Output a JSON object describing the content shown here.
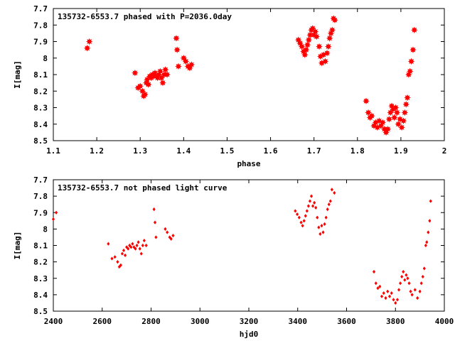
{
  "colors": {
    "points": "#ff0000",
    "axes": "#000000",
    "background": "#ffffff"
  },
  "chart_data": [
    {
      "type": "scatter",
      "title": "135732-6553.7 phased with P=2036.0day",
      "xlabel": "phase",
      "ylabel": "I[mag]",
      "xlim": [
        1.1,
        2.0
      ],
      "ylim": [
        7.7,
        8.5
      ],
      "y_inverted": true,
      "xticks": [
        "1.1",
        "1.2",
        "1.3",
        "1.4",
        "1.5",
        "1.6",
        "1.7",
        "1.8",
        "1.9",
        "2"
      ],
      "yticks": [
        "7.7",
        "7.8",
        "7.9",
        "8",
        "8.1",
        "8.2",
        "8.3",
        "8.4",
        "8.5"
      ],
      "xtick_values": [
        1.1,
        1.2,
        1.3,
        1.4,
        1.5,
        1.6,
        1.7,
        1.8,
        1.9,
        2.0
      ],
      "ytick_values": [
        7.7,
        7.8,
        7.9,
        8.0,
        8.1,
        8.2,
        8.3,
        8.4,
        8.5
      ],
      "marker": "star",
      "points": [
        [
          1.178,
          7.94
        ],
        [
          1.183,
          7.9
        ],
        [
          1.288,
          8.09
        ],
        [
          1.295,
          8.18
        ],
        [
          1.3,
          8.17
        ],
        [
          1.305,
          8.2
        ],
        [
          1.308,
          8.23
        ],
        [
          1.311,
          8.22
        ],
        [
          1.314,
          8.15
        ],
        [
          1.316,
          8.13
        ],
        [
          1.319,
          8.16
        ],
        [
          1.322,
          8.11
        ],
        [
          1.325,
          8.12
        ],
        [
          1.328,
          8.1
        ],
        [
          1.331,
          8.11
        ],
        [
          1.334,
          8.09
        ],
        [
          1.337,
          8.11
        ],
        [
          1.34,
          8.12
        ],
        [
          1.343,
          8.1
        ],
        [
          1.346,
          8.08
        ],
        [
          1.349,
          8.12
        ],
        [
          1.352,
          8.15
        ],
        [
          1.355,
          8.1
        ],
        [
          1.358,
          8.07
        ],
        [
          1.362,
          8.1
        ],
        [
          1.383,
          7.88
        ],
        [
          1.385,
          7.95
        ],
        [
          1.388,
          8.05
        ],
        [
          1.4,
          8.0
        ],
        [
          1.405,
          8.02
        ],
        [
          1.41,
          8.05
        ],
        [
          1.414,
          8.06
        ],
        [
          1.418,
          8.04
        ],
        [
          1.664,
          7.89
        ],
        [
          1.668,
          7.91
        ],
        [
          1.672,
          7.93
        ],
        [
          1.676,
          7.96
        ],
        [
          1.679,
          7.98
        ],
        [
          1.682,
          7.95
        ],
        [
          1.685,
          7.92
        ],
        [
          1.688,
          7.89
        ],
        [
          1.691,
          7.86
        ],
        [
          1.694,
          7.83
        ],
        [
          1.697,
          7.82
        ],
        [
          1.7,
          7.86
        ],
        [
          1.703,
          7.84
        ],
        [
          1.706,
          7.87
        ],
        [
          1.712,
          7.93
        ],
        [
          1.715,
          7.99
        ],
        [
          1.718,
          8.03
        ],
        [
          1.722,
          7.98
        ],
        [
          1.726,
          8.02
        ],
        [
          1.73,
          7.97
        ],
        [
          1.733,
          7.93
        ],
        [
          1.736,
          7.88
        ],
        [
          1.739,
          7.85
        ],
        [
          1.742,
          7.83
        ],
        [
          1.745,
          7.76
        ],
        [
          1.748,
          7.77
        ],
        [
          1.82,
          8.26
        ],
        [
          1.825,
          8.33
        ],
        [
          1.829,
          8.36
        ],
        [
          1.833,
          8.35
        ],
        [
          1.838,
          8.41
        ],
        [
          1.842,
          8.39
        ],
        [
          1.846,
          8.42
        ],
        [
          1.85,
          8.38
        ],
        [
          1.854,
          8.41
        ],
        [
          1.858,
          8.39
        ],
        [
          1.862,
          8.43
        ],
        [
          1.866,
          8.45
        ],
        [
          1.87,
          8.43
        ],
        [
          1.873,
          8.37
        ],
        [
          1.876,
          8.33
        ],
        [
          1.879,
          8.29
        ],
        [
          1.882,
          8.31
        ],
        [
          1.885,
          8.36
        ],
        [
          1.888,
          8.3
        ],
        [
          1.891,
          8.33
        ],
        [
          1.894,
          8.4
        ],
        [
          1.898,
          8.37
        ],
        [
          1.902,
          8.42
        ],
        [
          1.906,
          8.38
        ],
        [
          1.909,
          8.33
        ],
        [
          1.912,
          8.28
        ],
        [
          1.915,
          8.24
        ],
        [
          1.918,
          8.1
        ],
        [
          1.921,
          8.08
        ],
        [
          1.924,
          8.02
        ],
        [
          1.928,
          7.95
        ],
        [
          1.931,
          7.83
        ]
      ]
    },
    {
      "type": "scatter",
      "title": "135732-6553.7 not phased light curve",
      "xlabel": "hjd0",
      "ylabel": "I[mag]",
      "xlim": [
        2400,
        4000
      ],
      "ylim": [
        7.7,
        8.5
      ],
      "y_inverted": true,
      "xticks": [
        "2400",
        "2600",
        "2800",
        "3000",
        "3200",
        "3400",
        "3600",
        "3800",
        "4000"
      ],
      "yticks": [
        "7.7",
        "7.8",
        "7.9",
        "8",
        "8.1",
        "8.2",
        "8.3",
        "8.4",
        "8.5"
      ],
      "xtick_values": [
        2400,
        2600,
        2800,
        3000,
        3200,
        3400,
        3600,
        3800,
        4000
      ],
      "ytick_values": [
        7.7,
        7.8,
        7.9,
        8.0,
        8.1,
        8.2,
        8.3,
        8.4,
        8.5
      ],
      "marker": "diamond",
      "points": [
        [
          2400,
          7.94
        ],
        [
          2412,
          7.9
        ],
        [
          2625,
          8.09
        ],
        [
          2640,
          8.18
        ],
        [
          2652,
          8.17
        ],
        [
          2663,
          8.2
        ],
        [
          2670,
          8.23
        ],
        [
          2676,
          8.22
        ],
        [
          2682,
          8.15
        ],
        [
          2688,
          8.13
        ],
        [
          2694,
          8.16
        ],
        [
          2700,
          8.11
        ],
        [
          2706,
          8.12
        ],
        [
          2712,
          8.1
        ],
        [
          2718,
          8.11
        ],
        [
          2724,
          8.09
        ],
        [
          2730,
          8.11
        ],
        [
          2736,
          8.12
        ],
        [
          2742,
          8.1
        ],
        [
          2748,
          8.08
        ],
        [
          2754,
          8.12
        ],
        [
          2760,
          8.15
        ],
        [
          2766,
          8.1
        ],
        [
          2772,
          8.07
        ],
        [
          2780,
          8.1
        ],
        [
          2812,
          7.88
        ],
        [
          2816,
          7.96
        ],
        [
          2820,
          8.05
        ],
        [
          2858,
          8.0
        ],
        [
          2866,
          8.02
        ],
        [
          2876,
          8.05
        ],
        [
          2882,
          8.06
        ],
        [
          2890,
          8.04
        ],
        [
          3390,
          7.89
        ],
        [
          3398,
          7.91
        ],
        [
          3406,
          7.93
        ],
        [
          3414,
          7.96
        ],
        [
          3420,
          7.98
        ],
        [
          3426,
          7.95
        ],
        [
          3432,
          7.92
        ],
        [
          3438,
          7.89
        ],
        [
          3444,
          7.86
        ],
        [
          3450,
          7.83
        ],
        [
          3456,
          7.8
        ],
        [
          3462,
          7.86
        ],
        [
          3468,
          7.84
        ],
        [
          3474,
          7.87
        ],
        [
          3480,
          7.93
        ],
        [
          3486,
          7.99
        ],
        [
          3492,
          8.03
        ],
        [
          3498,
          7.98
        ],
        [
          3504,
          8.02
        ],
        [
          3510,
          7.97
        ],
        [
          3516,
          7.93
        ],
        [
          3522,
          7.88
        ],
        [
          3528,
          7.85
        ],
        [
          3534,
          7.83
        ],
        [
          3540,
          7.76
        ],
        [
          3550,
          7.78
        ],
        [
          3712,
          8.26
        ],
        [
          3720,
          8.33
        ],
        [
          3728,
          8.36
        ],
        [
          3736,
          8.35
        ],
        [
          3744,
          8.41
        ],
        [
          3752,
          8.39
        ],
        [
          3760,
          8.42
        ],
        [
          3768,
          8.38
        ],
        [
          3776,
          8.41
        ],
        [
          3784,
          8.39
        ],
        [
          3792,
          8.43
        ],
        [
          3800,
          8.45
        ],
        [
          3808,
          8.43
        ],
        [
          3814,
          8.37
        ],
        [
          3820,
          8.33
        ],
        [
          3826,
          8.29
        ],
        [
          3832,
          8.26
        ],
        [
          3838,
          8.31
        ],
        [
          3844,
          8.28
        ],
        [
          3850,
          8.3
        ],
        [
          3856,
          8.33
        ],
        [
          3862,
          8.38
        ],
        [
          3868,
          8.4
        ],
        [
          3880,
          8.37
        ],
        [
          3890,
          8.42
        ],
        [
          3900,
          8.38
        ],
        [
          3906,
          8.33
        ],
        [
          3912,
          8.29
        ],
        [
          3918,
          8.24
        ],
        [
          3924,
          8.1
        ],
        [
          3928,
          8.08
        ],
        [
          3934,
          8.02
        ],
        [
          3940,
          7.95
        ],
        [
          3944,
          7.83
        ]
      ]
    }
  ]
}
